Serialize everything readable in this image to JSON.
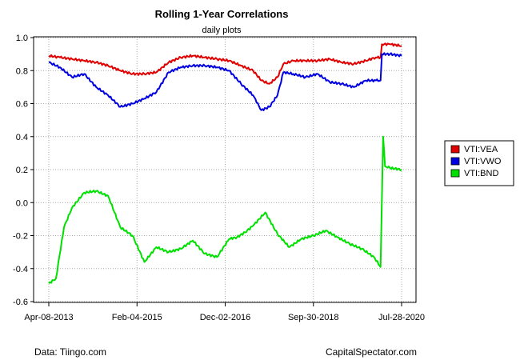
{
  "chart_data": {
    "type": "line",
    "title": "Rolling 1-Year Correlations",
    "subtitle": "daily plots",
    "xlabel": "",
    "ylabel": "",
    "x_ticks": [
      "Apr-08-2013",
      "Feb-04-2015",
      "Dec-02-2016",
      "Sep-30-2018",
      "Jul-28-2020"
    ],
    "y_ticks": [
      "1.0",
      "0.8",
      "0.6",
      "0.4",
      "0.2",
      "0.0",
      "-0.2",
      "-0.4",
      "-0.6"
    ],
    "xlim": [
      "2013-04-08",
      "2020-07-28"
    ],
    "ylim": [
      -0.6,
      1.0
    ],
    "grid": true,
    "legend_position": "right",
    "series": [
      {
        "name": "VTI:VEA",
        "color": "#e00000",
        "x": [
          "2013-04-08",
          "2013-07-01",
          "2013-10-01",
          "2014-01-01",
          "2014-04-01",
          "2014-07-01",
          "2014-10-01",
          "2015-01-01",
          "2015-04-01",
          "2015-07-01",
          "2015-10-01",
          "2016-01-01",
          "2016-04-01",
          "2016-07-01",
          "2016-10-01",
          "2017-01-01",
          "2017-04-01",
          "2017-07-01",
          "2017-09-01",
          "2017-11-01",
          "2018-01-01",
          "2018-02-15",
          "2018-05-01",
          "2018-08-01",
          "2018-11-01",
          "2019-02-01",
          "2019-05-01",
          "2019-08-01",
          "2019-11-01",
          "2020-01-15",
          "2020-02-20",
          "2020-03-01",
          "2020-05-01",
          "2020-07-28"
        ],
        "values": [
          0.89,
          0.88,
          0.87,
          0.86,
          0.85,
          0.83,
          0.8,
          0.78,
          0.78,
          0.79,
          0.85,
          0.88,
          0.89,
          0.88,
          0.87,
          0.86,
          0.83,
          0.8,
          0.74,
          0.72,
          0.76,
          0.84,
          0.86,
          0.86,
          0.86,
          0.87,
          0.85,
          0.84,
          0.86,
          0.88,
          0.88,
          0.96,
          0.96,
          0.95
        ]
      },
      {
        "name": "VTI:VWO",
        "color": "#0000e0",
        "x": [
          "2013-04-08",
          "2013-07-01",
          "2013-10-01",
          "2014-01-01",
          "2014-04-01",
          "2014-07-01",
          "2014-10-01",
          "2015-01-01",
          "2015-04-01",
          "2015-07-01",
          "2015-10-01",
          "2016-01-01",
          "2016-04-01",
          "2016-07-01",
          "2016-10-01",
          "2017-01-01",
          "2017-04-01",
          "2017-07-01",
          "2017-09-01",
          "2017-11-01",
          "2018-01-01",
          "2018-02-15",
          "2018-05-01",
          "2018-08-01",
          "2018-11-01",
          "2019-02-01",
          "2019-05-01",
          "2019-08-01",
          "2019-11-01",
          "2020-01-15",
          "2020-02-20",
          "2020-03-01",
          "2020-05-01",
          "2020-07-28"
        ],
        "values": [
          0.85,
          0.82,
          0.76,
          0.78,
          0.7,
          0.65,
          0.58,
          0.6,
          0.63,
          0.67,
          0.79,
          0.82,
          0.83,
          0.83,
          0.82,
          0.8,
          0.72,
          0.65,
          0.56,
          0.58,
          0.65,
          0.79,
          0.78,
          0.76,
          0.78,
          0.73,
          0.72,
          0.7,
          0.74,
          0.74,
          0.74,
          0.9,
          0.9,
          0.89
        ]
      },
      {
        "name": "VTI:BND",
        "color": "#00e000",
        "x": [
          "2013-04-08",
          "2013-06-01",
          "2013-08-01",
          "2013-10-01",
          "2014-01-01",
          "2014-04-01",
          "2014-07-01",
          "2014-10-01",
          "2015-01-01",
          "2015-04-01",
          "2015-07-01",
          "2015-10-01",
          "2016-01-01",
          "2016-04-01",
          "2016-07-01",
          "2016-10-01",
          "2017-01-01",
          "2017-03-01",
          "2017-05-01",
          "2017-07-01",
          "2017-10-01",
          "2018-01-01",
          "2018-04-01",
          "2018-07-01",
          "2018-10-01",
          "2019-01-01",
          "2019-04-01",
          "2019-07-01",
          "2019-10-01",
          "2020-01-01",
          "2020-02-20",
          "2020-03-10",
          "2020-03-25",
          "2020-05-01",
          "2020-07-28"
        ],
        "values": [
          -0.49,
          -0.46,
          -0.15,
          -0.03,
          0.06,
          0.07,
          0.04,
          -0.15,
          -0.2,
          -0.36,
          -0.27,
          -0.3,
          -0.28,
          -0.23,
          -0.31,
          -0.33,
          -0.22,
          -0.21,
          -0.18,
          -0.14,
          -0.06,
          -0.19,
          -0.27,
          -0.22,
          -0.2,
          -0.17,
          -0.21,
          -0.25,
          -0.28,
          -0.33,
          -0.39,
          0.4,
          0.22,
          0.21,
          0.2
        ]
      }
    ]
  },
  "footer": {
    "source": "Data: Tiingo.com",
    "credit": "CapitalSpectator.com"
  }
}
